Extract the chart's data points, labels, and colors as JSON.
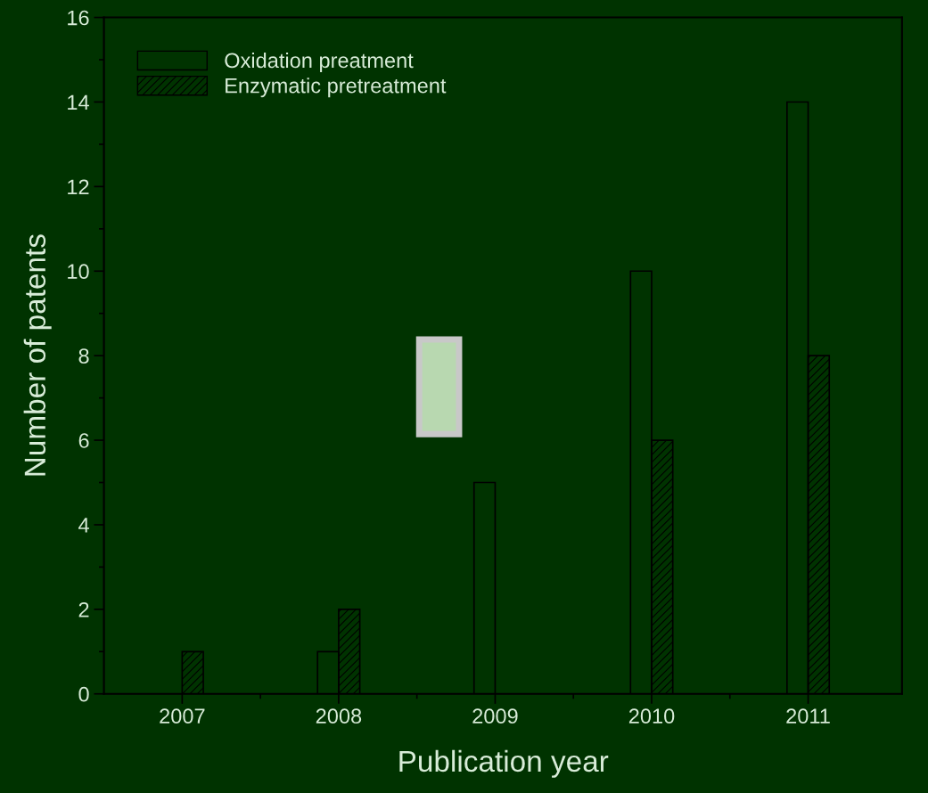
{
  "chart_data": {
    "type": "bar",
    "xlabel": "Publication year",
    "ylabel": "Number of patents",
    "categories": [
      "2007",
      "2008",
      "2009",
      "2010",
      "2011"
    ],
    "series": [
      {
        "name": "Oxidation preatment",
        "color": "#000000",
        "values": [
          0,
          1,
          5,
          10,
          14
        ]
      },
      {
        "name": "Enzymatic pretreatment",
        "color": "#000000",
        "values": [
          1,
          2,
          0,
          6,
          8
        ]
      }
    ],
    "ylim": [
      0,
      16
    ],
    "yticks": [
      0,
      2,
      4,
      6,
      8,
      10,
      12,
      14,
      16
    ],
    "grid": false,
    "legend": "top left"
  }
}
